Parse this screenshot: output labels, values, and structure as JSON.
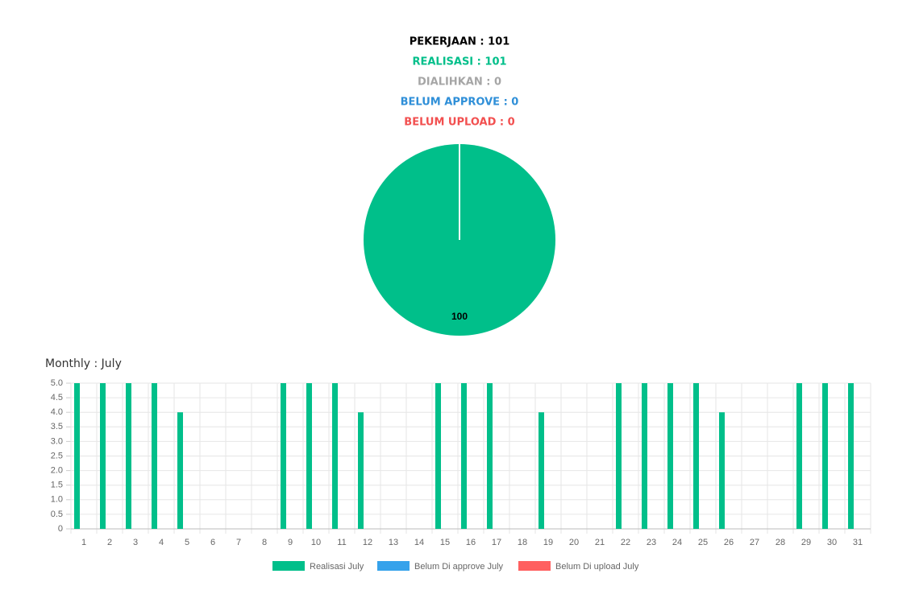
{
  "header": [
    {
      "text": "PEKERJAAN : 101",
      "color": "#000000"
    },
    {
      "text": "REALISASI : 101",
      "color": "#00bf8a"
    },
    {
      "text": "DIALIHKAN : 0",
      "color": "#a6a6a6"
    },
    {
      "text": "BELUM APPROVE : 0",
      "color": "#2f8fd8"
    },
    {
      "text": "BELUM UPLOAD : 0",
      "color": "#f24f4f"
    }
  ],
  "chart_data": [
    {
      "type": "pie",
      "values": [
        100
      ],
      "colors": [
        "#00bf8a"
      ]
    },
    {
      "type": "bar",
      "title": "Monthly : July",
      "categories": [
        "1",
        "2",
        "3",
        "4",
        "5",
        "6",
        "7",
        "8",
        "9",
        "10",
        "11",
        "12",
        "13",
        "14",
        "15",
        "16",
        "17",
        "18",
        "19",
        "20",
        "21",
        "22",
        "23",
        "24",
        "25",
        "26",
        "27",
        "28",
        "29",
        "30",
        "31"
      ],
      "series": [
        {
          "name": "Realisasi July",
          "color": "#00bf8a",
          "values": [
            5,
            5,
            5,
            5,
            4,
            0,
            0,
            0,
            5,
            5,
            5,
            4,
            0,
            0,
            5,
            5,
            5,
            0,
            4,
            0,
            0,
            5,
            5,
            5,
            5,
            4,
            0,
            0,
            5,
            5,
            5
          ]
        },
        {
          "name": "Belum Di approve July",
          "color": "#36a2eb",
          "values": [
            0,
            0,
            0,
            0,
            0,
            0,
            0,
            0,
            0,
            0,
            0,
            0,
            0,
            0,
            0,
            0,
            0,
            0,
            0,
            0,
            0,
            0,
            0,
            0,
            0,
            0,
            0,
            0,
            0,
            0,
            0
          ]
        },
        {
          "name": "Belum Di upload July",
          "color": "#ff6060",
          "values": [
            0,
            0,
            0,
            0,
            0,
            0,
            0,
            0,
            0,
            0,
            0,
            0,
            0,
            0,
            0,
            0,
            0,
            0,
            0,
            0,
            0,
            0,
            0,
            0,
            0,
            0,
            0,
            0,
            0,
            0,
            0
          ]
        }
      ],
      "ylim": [
        0,
        5
      ],
      "yticks": [
        0,
        0.5,
        {
          "value": 1,
          "label": "1.0"
        },
        1.5,
        {
          "value": 2,
          "label": "2.0"
        },
        2.5,
        {
          "value": 3,
          "label": "3.0"
        },
        3.5,
        {
          "value": 4,
          "label": "4.0"
        },
        4.5,
        {
          "value": 5,
          "label": "5.0"
        }
      ],
      "grid": true
    }
  ]
}
